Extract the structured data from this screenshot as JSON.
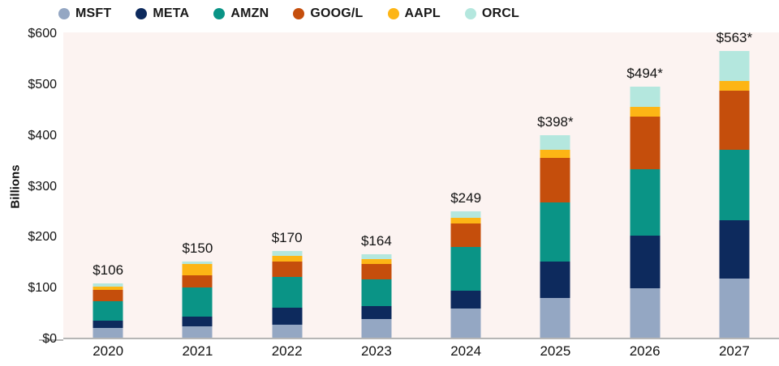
{
  "chart_data": {
    "type": "bar",
    "stacked": true,
    "title": "",
    "ylabel": "Billions",
    "xlabel": "",
    "ylim": [
      0,
      600
    ],
    "grid": false,
    "legend_position": "top",
    "ytick_labels": [
      "$600",
      "$500",
      "$400",
      "$300",
      "$200",
      "$100",
      "$0"
    ],
    "categories": [
      "2020",
      "2021",
      "2022",
      "2023",
      "2024",
      "2025",
      "2026",
      "2027"
    ],
    "series": [
      {
        "name": "MSFT",
        "color": "#94a7c3",
        "values": [
          19,
          22,
          25,
          37,
          57,
          78,
          97,
          117
        ]
      },
      {
        "name": "META",
        "color": "#0d2a5d",
        "values": [
          15,
          19,
          34,
          25,
          36,
          71,
          103,
          114
        ]
      },
      {
        "name": "AMZN",
        "color": "#0a9486",
        "values": [
          38,
          57,
          61,
          53,
          85,
          117,
          131,
          139
        ]
      },
      {
        "name": "GOOG/L",
        "color": "#c54e0c",
        "values": [
          22,
          24,
          29,
          30,
          47,
          87,
          104,
          115
        ]
      },
      {
        "name": "AAPL",
        "color": "#fdb515",
        "values": [
          7,
          23,
          12,
          10,
          11,
          16,
          18,
          19
        ]
      },
      {
        "name": "ORCL",
        "color": "#b4e7de",
        "values": [
          5,
          5,
          9,
          9,
          13,
          29,
          41,
          59
        ]
      }
    ],
    "bar_total_labels": [
      "$106",
      "$150",
      "$170",
      "$164",
      "$249",
      "$398*",
      "$494*",
      "$563*"
    ]
  },
  "colors": {
    "plot_background": "#fcf3f1",
    "axis_line": "#b6b6b6",
    "text": "#121212"
  }
}
